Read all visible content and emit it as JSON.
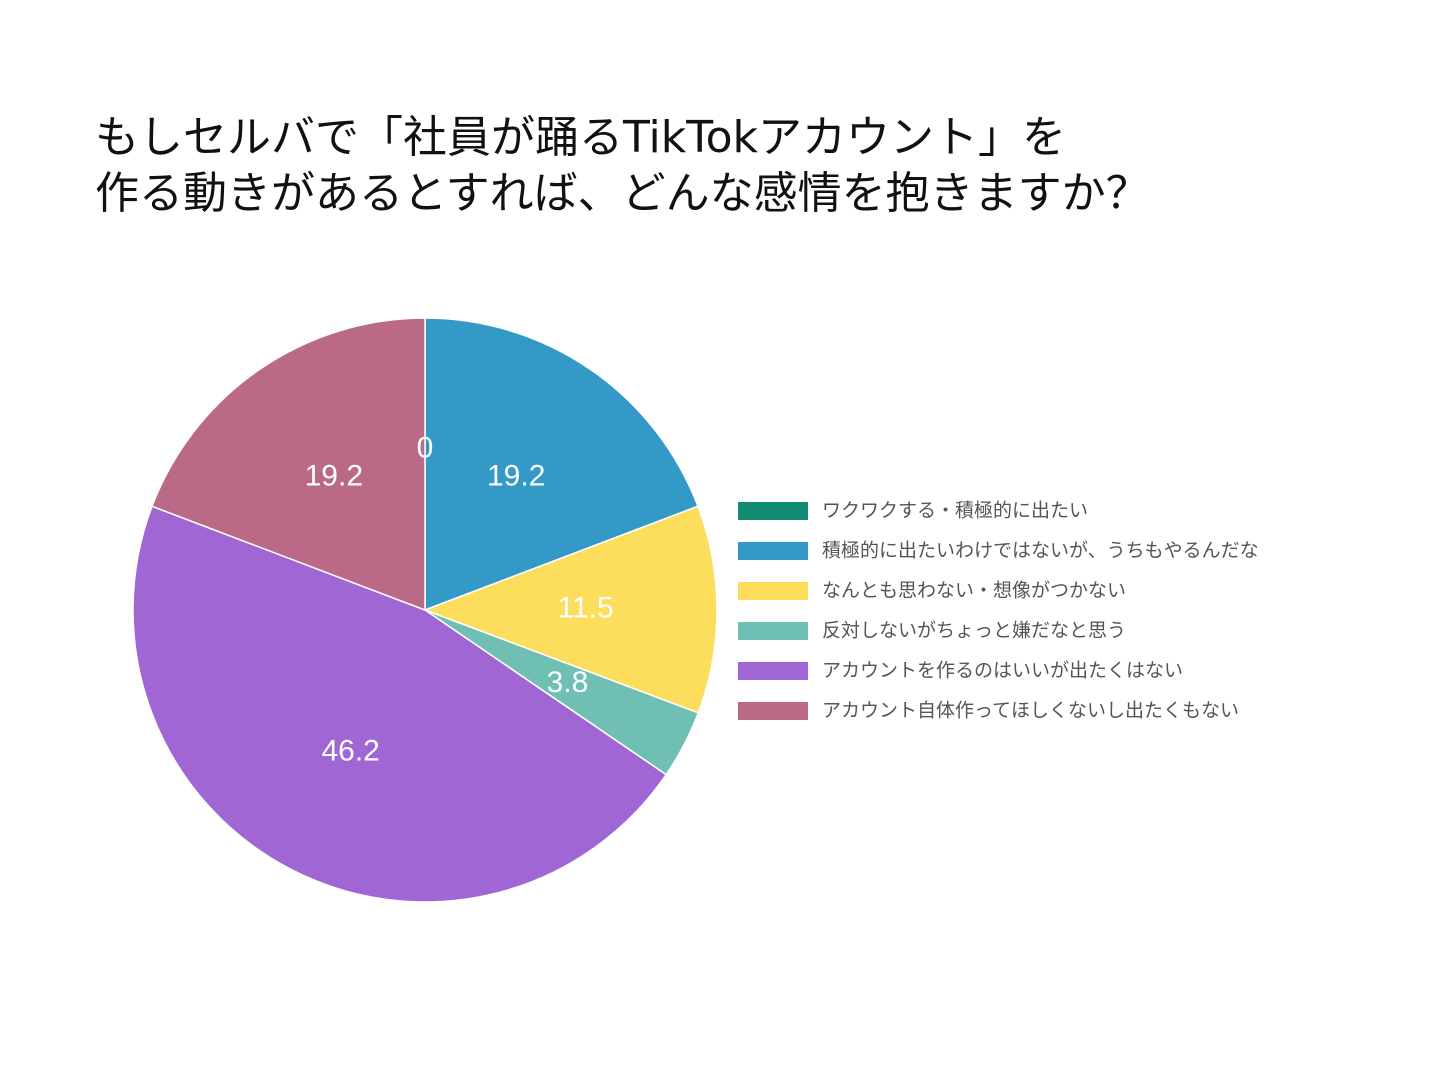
{
  "chart_data": {
    "type": "pie",
    "title": [
      "もしセルバで「社員が踊るTikTokアカウント」を",
      "作る動きがあるとすれば、どんな感情を抱きますか？"
    ],
    "categories": [
      "ワクワクする・積極的に出たい",
      "積極的に出たいわけではないが、うちもやるんだな",
      "なんとも思わない・想像がつかない",
      "反対しないがちょっと嫌だなと思う",
      "アカウントを作るのはいいが出たくはない",
      "アカウント自体作ってほしくないし出たくもない"
    ],
    "values": [
      0,
      19.2,
      11.5,
      3.8,
      46.2,
      19.2
    ],
    "colors": [
      "#138a72",
      "#3399c6",
      "#fddd5c",
      "#6fbfb5",
      "#a067d4",
      "#ba6a86"
    ],
    "legend": "right"
  }
}
